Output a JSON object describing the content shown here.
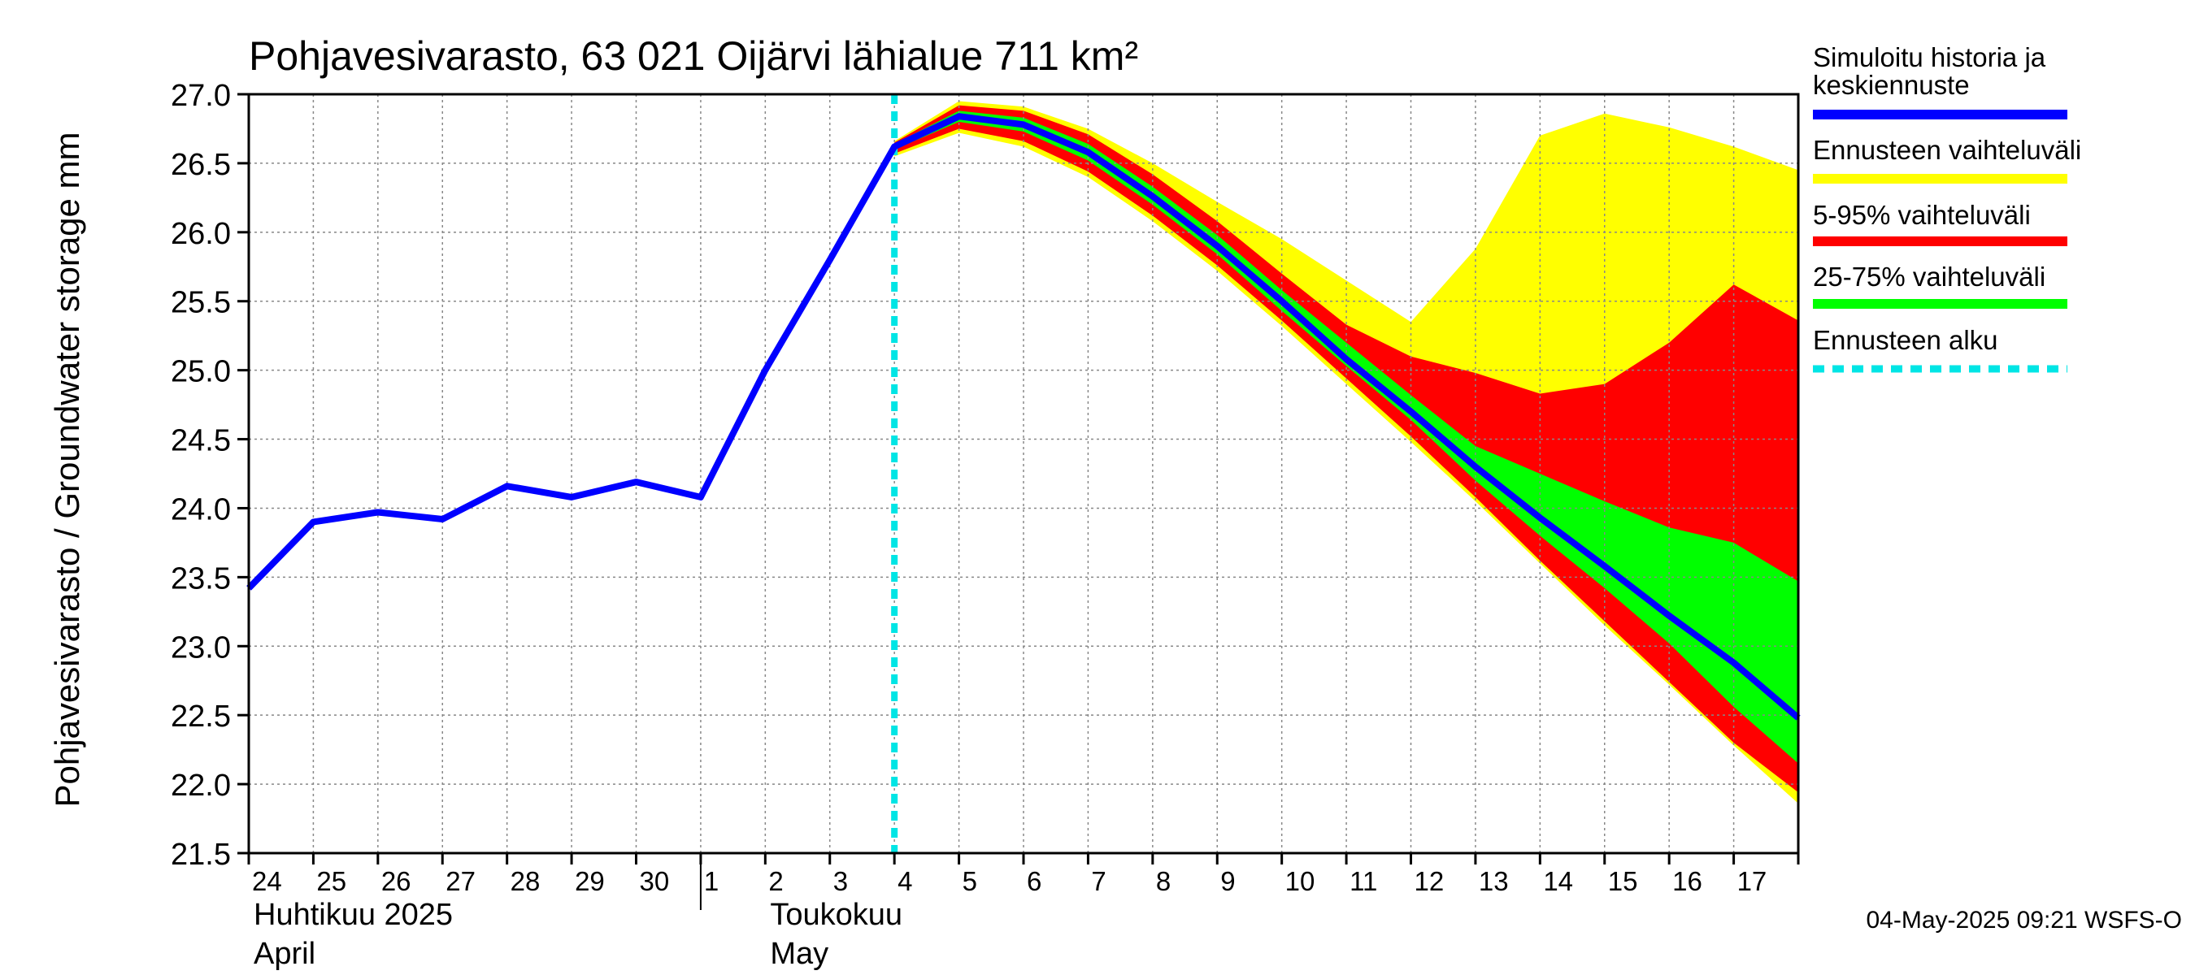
{
  "chart_data": {
    "type": "area",
    "title": "Pohjavesivarasto, 63 021 Oijärvi lähialue 711 km²",
    "ylabel": "Pohjavesivarasto / Groundwater storage   mm",
    "ylim": [
      21.5,
      27.0
    ],
    "y_ticks": [
      "21.5",
      "22.0",
      "22.5",
      "23.0",
      "23.5",
      "24.0",
      "24.5",
      "25.0",
      "25.5",
      "26.0",
      "26.5",
      "27.0"
    ],
    "x_day_labels": [
      "24",
      "25",
      "26",
      "27",
      "28",
      "29",
      "30",
      "1",
      "2",
      "3",
      "4",
      "5",
      "6",
      "7",
      "8",
      "9",
      "10",
      "11",
      "12",
      "13",
      "14",
      "15",
      "16",
      "17"
    ],
    "month_labels": [
      {
        "fi": "Huhtikuu  2025",
        "en": "April"
      },
      {
        "fi": "Toukokuu",
        "en": "May"
      }
    ],
    "grid": true,
    "forecast_start_day": 10.0,
    "history": {
      "name": "Simuloitu historia ja keskiennuste",
      "x": [
        0,
        1,
        2,
        3,
        4,
        5,
        6,
        7,
        8,
        9,
        10
      ],
      "y": [
        23.42,
        23.9,
        23.97,
        23.92,
        24.16,
        24.08,
        24.19,
        24.08,
        25.0,
        25.8,
        26.62
      ]
    },
    "forecast_x": [
      10,
      11,
      12,
      13,
      14,
      15,
      16,
      17,
      18,
      19,
      20,
      21,
      22,
      23,
      24
    ],
    "median": [
      26.62,
      26.84,
      26.78,
      26.58,
      26.26,
      25.9,
      25.5,
      25.08,
      24.7,
      24.3,
      23.93,
      23.58,
      23.22,
      22.88,
      22.48
    ],
    "range_full": {
      "name": "Ennusteen vaihteluväli",
      "low": [
        26.55,
        26.72,
        26.62,
        26.4,
        26.08,
        25.72,
        25.32,
        24.9,
        24.48,
        24.05,
        23.6,
        23.15,
        22.72,
        22.28,
        21.86
      ],
      "high": [
        26.66,
        26.95,
        26.91,
        26.75,
        26.5,
        26.22,
        25.95,
        25.65,
        25.35,
        25.88,
        26.7,
        26.86,
        26.76,
        26.62,
        26.45
      ]
    },
    "range_5_95": {
      "name": "5-95% vaihteluväli",
      "low": [
        26.57,
        26.75,
        26.66,
        26.44,
        26.12,
        25.76,
        25.36,
        24.94,
        24.52,
        24.08,
        23.62,
        23.18,
        22.74,
        22.3,
        21.94
      ],
      "high": [
        26.65,
        26.92,
        26.88,
        26.71,
        26.42,
        26.08,
        25.7,
        25.33,
        25.1,
        24.98,
        24.83,
        24.9,
        25.2,
        25.62,
        25.36
      ]
    },
    "range_25_75": {
      "name": "25-75% vaihteluväli",
      "low": [
        26.6,
        26.8,
        26.73,
        26.52,
        26.2,
        25.84,
        25.43,
        25.03,
        24.64,
        24.2,
        23.8,
        23.42,
        23.02,
        22.56,
        22.15
      ],
      "high": [
        26.64,
        26.88,
        26.83,
        26.64,
        26.33,
        25.98,
        25.58,
        25.2,
        24.82,
        24.45,
        24.25,
        24.05,
        23.86,
        23.75,
        23.47
      ]
    },
    "legend": [
      {
        "label": "Simuloitu historia ja",
        "label2": "keskiennuste",
        "color": "#0000ff",
        "style": "solid"
      },
      {
        "label": "Ennusteen vaihteluväli",
        "color": "#ffff00",
        "style": "solid"
      },
      {
        "label": "5-95% vaihteluväli",
        "color": "#ff0000",
        "style": "solid"
      },
      {
        "label": "25-75% vaihteluväli",
        "color": "#00ff00",
        "style": "solid"
      },
      {
        "label": "Ennusteen alku",
        "color": "#00e5e5",
        "style": "dashed"
      }
    ],
    "colors": {
      "history": "#0000ff",
      "range_full": "#ffff00",
      "range_5_95": "#ff0000",
      "range_25_75": "#00ff00",
      "forecast_start": "#00e5e5",
      "grid": "#888888"
    }
  },
  "footer": {
    "timestamp": "04-May-2025 09:21 WSFS-O"
  }
}
